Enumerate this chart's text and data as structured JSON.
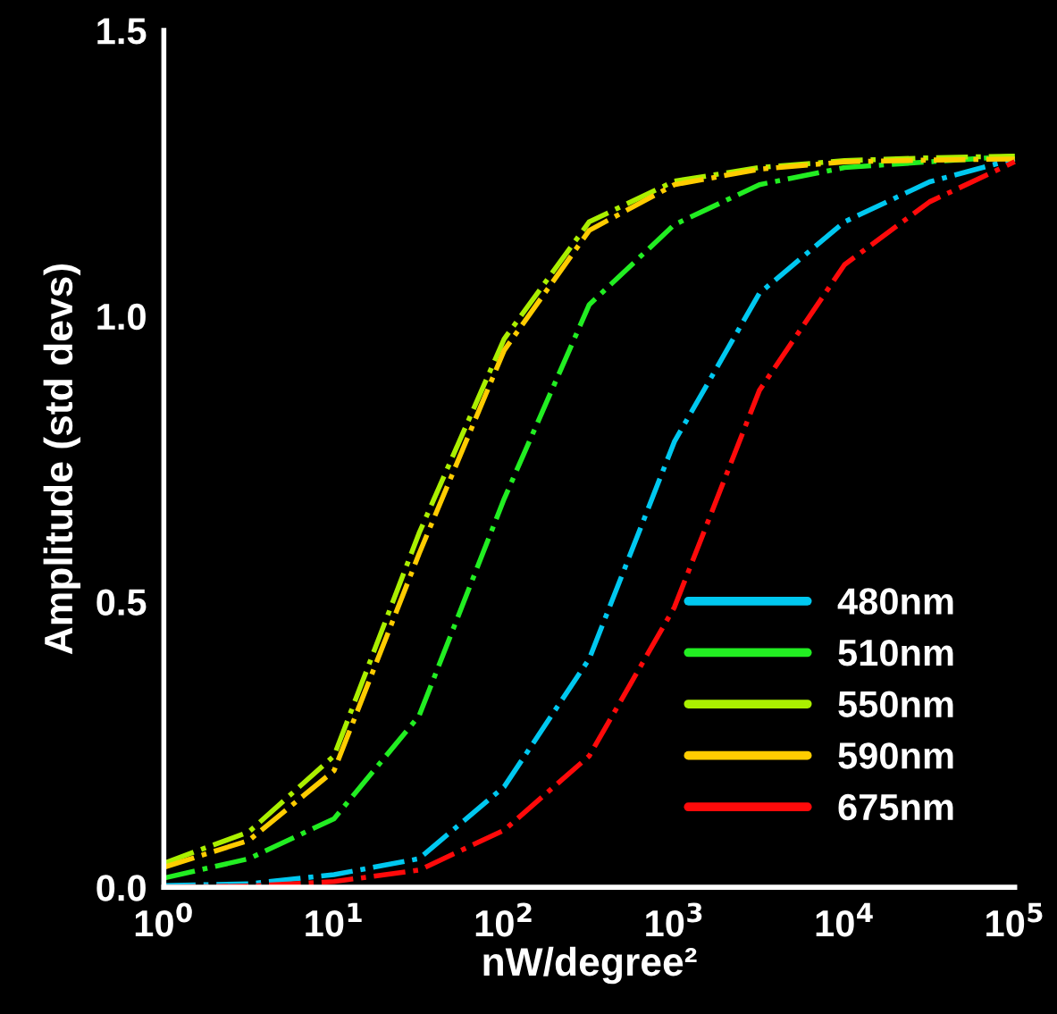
{
  "chart_data": {
    "type": "line",
    "xlabel": "nW/degree²",
    "ylabel": "Amplitude (std devs)",
    "log": "x",
    "x": [
      1,
      3.162,
      10,
      31.62,
      100,
      316.2,
      1000,
      3162,
      10000,
      31620,
      100000
    ],
    "xlim": [
      1,
      100000
    ],
    "xticks": [
      {
        "value": 1,
        "label": "10$^{0}$"
      },
      {
        "value": 10,
        "label": "10$^{1}$"
      },
      {
        "value": 100,
        "label": "10$^{2}$"
      },
      {
        "value": 1000,
        "label": "10$^{3}$"
      },
      {
        "value": 10000,
        "label": "10$^{4}$"
      },
      {
        "value": 100000,
        "label": "10$^{5}$"
      }
    ],
    "ylim": [
      0,
      1.5
    ],
    "yticks": [
      {
        "value": 0,
        "label": "0.0"
      },
      {
        "value": 0.5,
        "label": "0.5"
      },
      {
        "value": 1.0,
        "label": "1.0"
      },
      {
        "value": 1.5,
        "label": "1.5"
      }
    ],
    "grid": false,
    "legend": "bottom right",
    "line_style": "dashdot",
    "series": [
      {
        "name": "480nm",
        "color": "#00c8f0",
        "values": [
          0.003,
          0.006,
          0.022,
          0.05,
          0.176,
          0.4,
          0.78,
          1.04,
          1.165,
          1.235,
          1.275
        ]
      },
      {
        "name": "510nm",
        "color": "#22ee22",
        "values": [
          0.016,
          0.05,
          0.12,
          0.3,
          0.68,
          1.02,
          1.16,
          1.23,
          1.26,
          1.27,
          1.28
        ]
      },
      {
        "name": "550nm",
        "color": "#aaf000",
        "values": [
          0.042,
          0.097,
          0.23,
          0.62,
          0.96,
          1.165,
          1.236,
          1.26,
          1.272,
          1.277,
          1.28
        ]
      },
      {
        "name": "590nm",
        "color": "#ffcc00",
        "values": [
          0.035,
          0.082,
          0.204,
          0.584,
          0.94,
          1.15,
          1.23,
          1.257,
          1.27,
          1.273,
          1.275
        ]
      },
      {
        "name": "675nm",
        "color": "#ff0a0a",
        "values": [
          0.0,
          0.002,
          0.01,
          0.03,
          0.1,
          0.23,
          0.49,
          0.87,
          1.09,
          1.2,
          1.27
        ]
      }
    ]
  }
}
